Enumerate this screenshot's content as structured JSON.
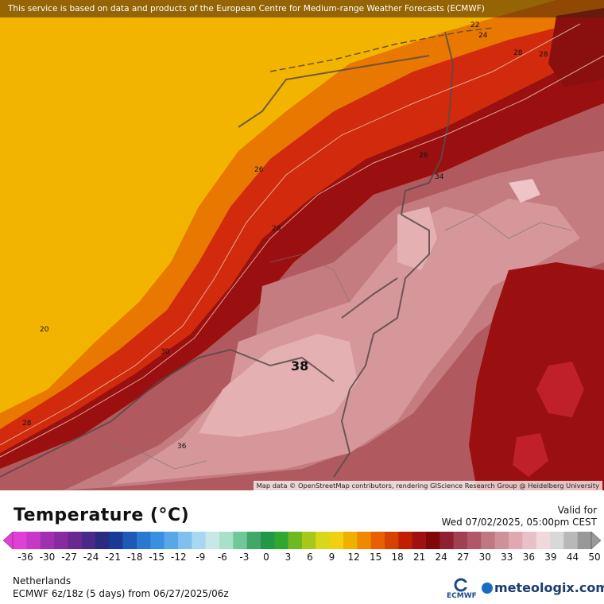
{
  "map": {
    "banner": "This service is based on data and products of the European Centre for Medium-range Weather Forecasts (ECMWF)",
    "attribution": "Map data © OpenStreetMap contributors, rendering GIScience Research Group @ Heidelberg University",
    "contour_labels": [
      "22",
      "24",
      "28",
      "28",
      "26",
      "26",
      "34",
      "28",
      "20",
      "30",
      "28",
      "36"
    ],
    "max_label": "38"
  },
  "header": {
    "title": "Temperature (°C)",
    "valid_label": "Valid for",
    "valid_time": "Wed 07/02/2025, 05:00pm CEST"
  },
  "scale": {
    "ticks": [
      "-36",
      "-30",
      "-27",
      "-24",
      "-21",
      "-18",
      "-15",
      "-12",
      "-9",
      "-6",
      "-3",
      "0",
      "3",
      "6",
      "9",
      "12",
      "15",
      "18",
      "21",
      "24",
      "27",
      "30",
      "33",
      "36",
      "39",
      "44",
      "50"
    ],
    "colors": [
      "#e040d8",
      "#c838c8",
      "#a030b0",
      "#8a2aa0",
      "#6a2890",
      "#4a2a88",
      "#2a2a80",
      "#1a3a98",
      "#1d5ab8",
      "#2a78d0",
      "#3a90e0",
      "#58a8e8",
      "#80c0f0",
      "#a8d8f0",
      "#c8e8e8",
      "#a8e0c8",
      "#70c898",
      "#40a868",
      "#209848",
      "#30a830",
      "#70b820",
      "#a8c818",
      "#d8d818",
      "#f0d010",
      "#f0b000",
      "#f08800",
      "#e86000",
      "#d84000",
      "#c02000",
      "#a01010",
      "#800808",
      "#902030",
      "#a04050",
      "#b05868",
      "#c07880",
      "#d09098",
      "#e0a8b0",
      "#e8c0c8",
      "#f0d8dc",
      "#d8d8d8",
      "#b8b8b8",
      "#989898"
    ],
    "region": "Netherlands",
    "model_run": "ECMWF 6z/18z (5 days) from 06/27/2025/06z"
  },
  "branding": {
    "ecmwf": "ECMWF",
    "meteologix": "meteologix.com"
  }
}
